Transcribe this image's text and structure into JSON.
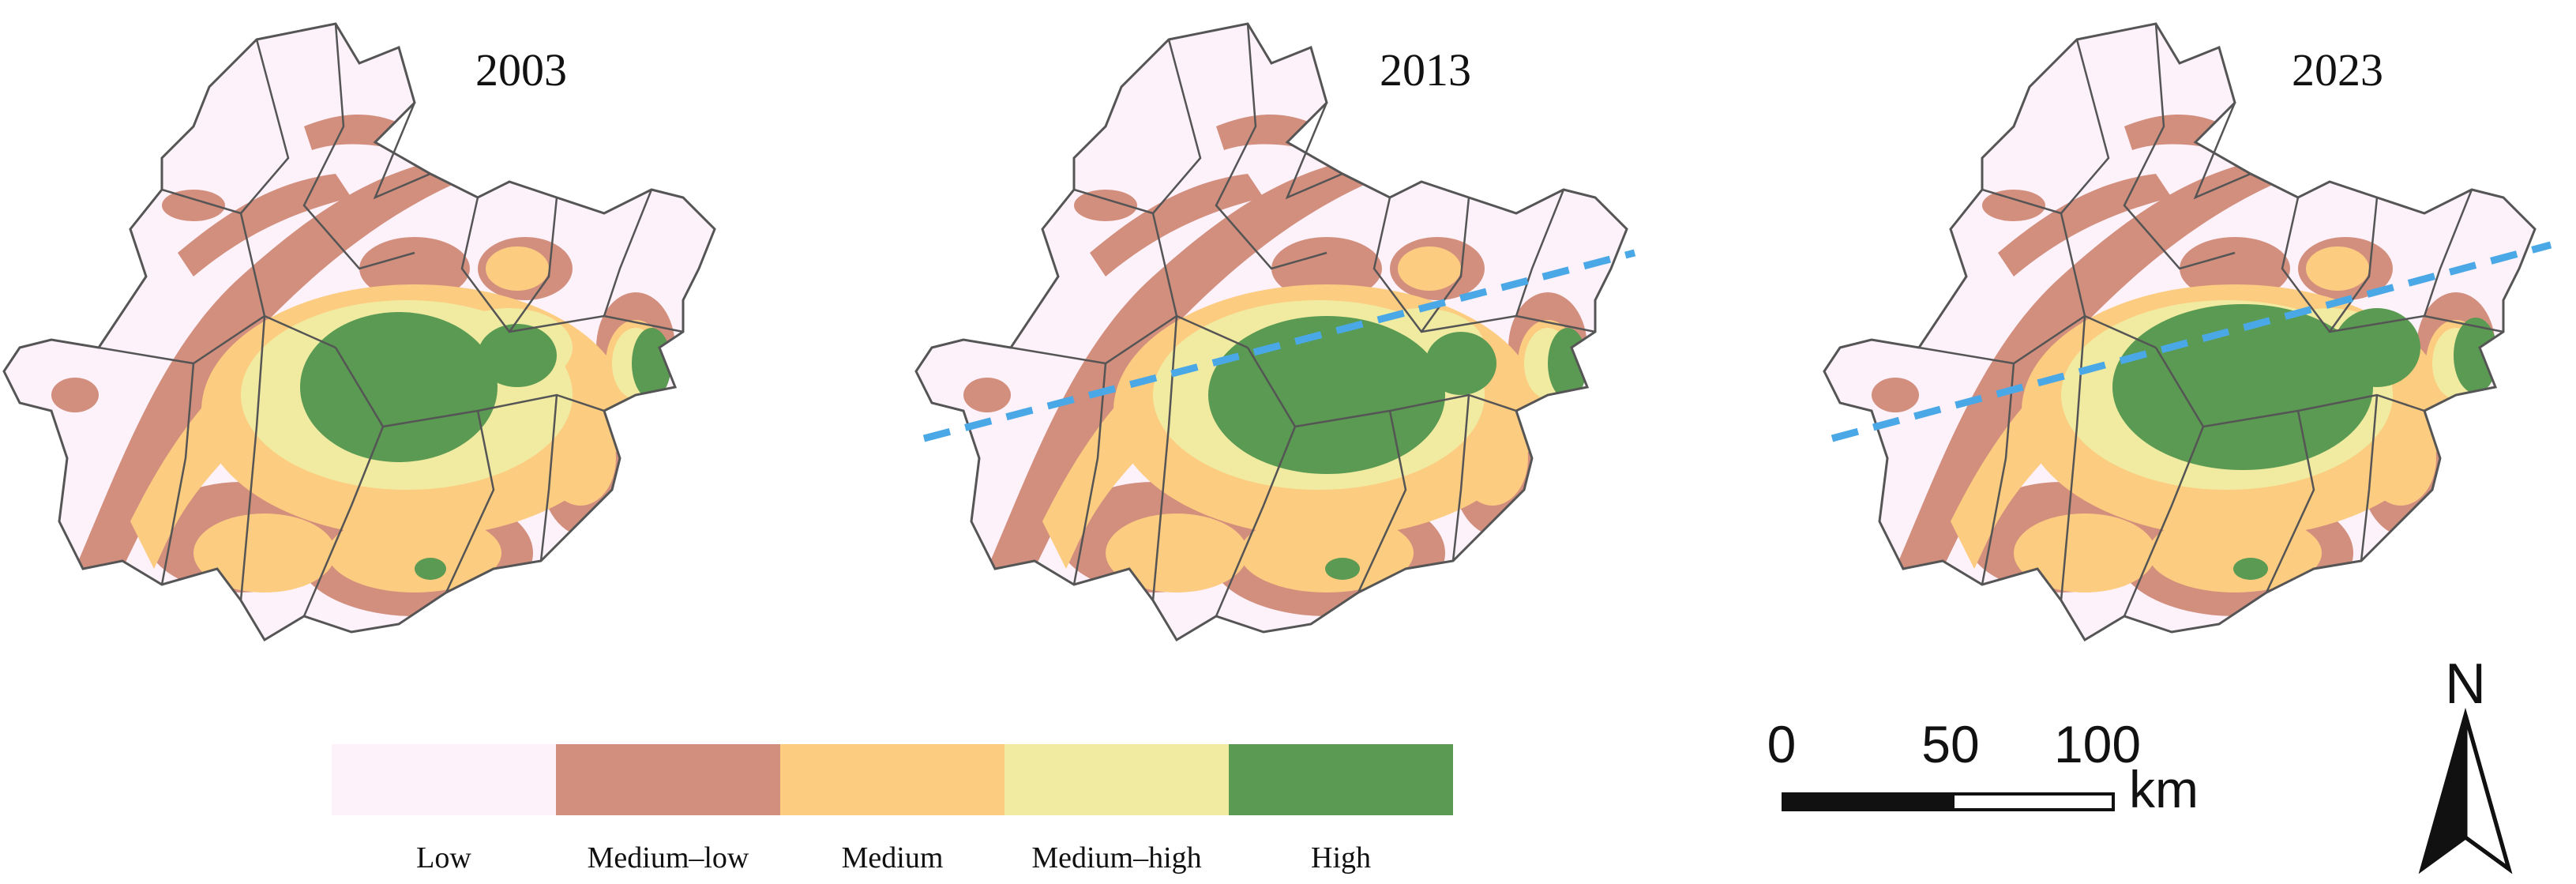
{
  "maps": [
    {
      "year": "2003",
      "has_divider_line": false
    },
    {
      "year": "2013",
      "has_divider_line": true
    },
    {
      "year": "2023",
      "has_divider_line": true
    }
  ],
  "legend": {
    "classes": [
      {
        "label": "Low",
        "color": "#fdf2fa"
      },
      {
        "label": "Medium–low",
        "color": "#d38f7e"
      },
      {
        "label": "Medium",
        "color": "#fccc80"
      },
      {
        "label": "Medium–high",
        "color": "#f1eba2"
      },
      {
        "label": "High",
        "color": "#5a9a52"
      }
    ]
  },
  "scale_bar": {
    "ticks": [
      "0",
      "50",
      "100"
    ],
    "unit": "km"
  },
  "north_arrow": {
    "label": "N"
  },
  "colors": {
    "boundary": "#555555",
    "divider_line": "#4aa8e6",
    "background": "#ffffff"
  }
}
